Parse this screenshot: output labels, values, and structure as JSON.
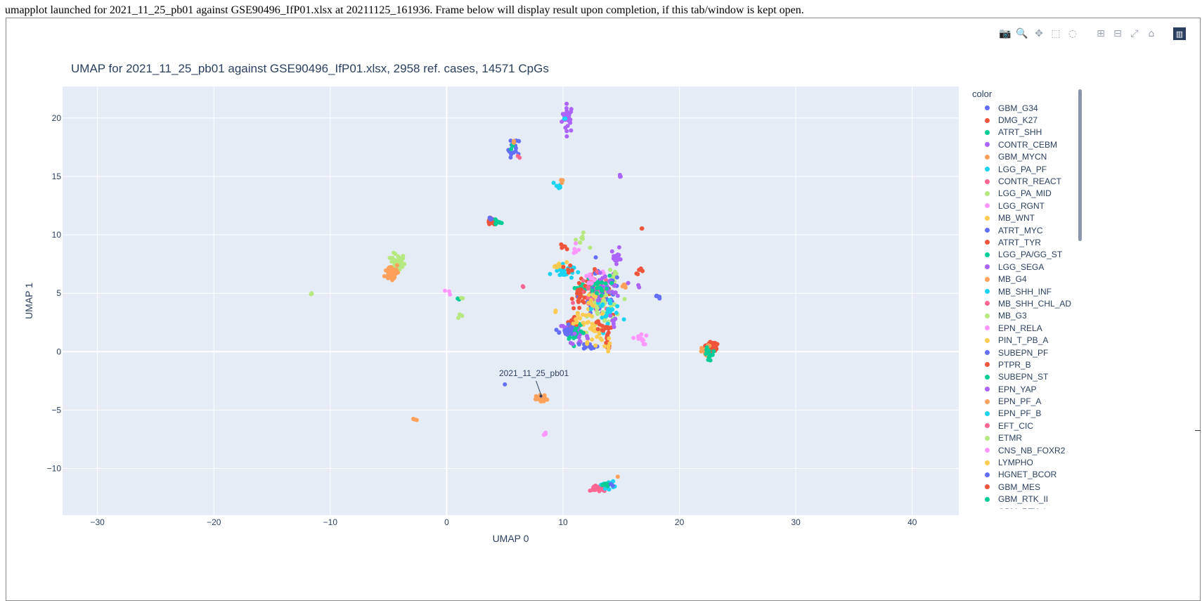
{
  "banner": "umapplot launched for 2021_11_25_pb01 against GSE90496_IfP01.xlsx at 20211125_161936. Frame below will display result upon completion, if this tab/window is kept open.",
  "modebar": {
    "buttons": [
      {
        "name": "camera-icon",
        "glyph": "📷"
      },
      {
        "name": "zoom-icon",
        "glyph": "🔍"
      },
      {
        "name": "pan-icon",
        "glyph": "✥"
      },
      {
        "name": "box-select-icon",
        "glyph": "⬚"
      },
      {
        "name": "lasso-select-icon",
        "glyph": "◌"
      },
      {
        "name": "zoom-in-icon",
        "glyph": "⊞"
      },
      {
        "name": "zoom-out-icon",
        "glyph": "⊟"
      },
      {
        "name": "autoscale-icon",
        "glyph": "⤢"
      },
      {
        "name": "home-icon",
        "glyph": "⌂"
      }
    ],
    "logo": "▥"
  },
  "chart_data": {
    "type": "scatter",
    "title": "UMAP for 2021_11_25_pb01 against GSE90496_IfP01.xlsx, 2958 ref. cases, 14571 CpGs",
    "xlabel": "UMAP 0",
    "ylabel": "UMAP 1",
    "xlim": [
      -33,
      44
    ],
    "ylim": [
      -14,
      22.7
    ],
    "xticks": [
      -30,
      -20,
      -10,
      0,
      10,
      20,
      30,
      40
    ],
    "yticks": [
      -10,
      -5,
      0,
      5,
      10,
      15,
      20
    ],
    "grid": true,
    "plot_bgcolor": "#e5ecf6",
    "legend_title": "color",
    "legend_position": "right",
    "series": [
      {
        "name": "GBM_G34",
        "color": "#636efa"
      },
      {
        "name": "DMG_K27",
        "color": "#EF553B"
      },
      {
        "name": "ATRT_SHH",
        "color": "#00cc96"
      },
      {
        "name": "CONTR_CEBM",
        "color": "#ab63fa"
      },
      {
        "name": "GBM_MYCN",
        "color": "#FFA15A"
      },
      {
        "name": "LGG_PA_PF",
        "color": "#19d3f3"
      },
      {
        "name": "CONTR_REACT",
        "color": "#FF6692"
      },
      {
        "name": "LGG_PA_MID",
        "color": "#B6E880"
      },
      {
        "name": "LGG_RGNT",
        "color": "#FF97FF"
      },
      {
        "name": "MB_WNT",
        "color": "#FECB52"
      },
      {
        "name": "ATRT_MYC",
        "color": "#636efa"
      },
      {
        "name": "ATRT_TYR",
        "color": "#EF553B"
      },
      {
        "name": "LGG_PA/GG_ST",
        "color": "#00cc96"
      },
      {
        "name": "LGG_SEGA",
        "color": "#ab63fa"
      },
      {
        "name": "MB_G4",
        "color": "#FFA15A"
      },
      {
        "name": "MB_SHH_INF",
        "color": "#19d3f3"
      },
      {
        "name": "MB_SHH_CHL_AD",
        "color": "#FF6692"
      },
      {
        "name": "MB_G3",
        "color": "#B6E880"
      },
      {
        "name": "EPN_RELA",
        "color": "#FF97FF"
      },
      {
        "name": "PIN_T_PB_A",
        "color": "#FECB52"
      },
      {
        "name": "SUBEPN_PF",
        "color": "#636efa"
      },
      {
        "name": "PTPR_B",
        "color": "#EF553B"
      },
      {
        "name": "SUBEPN_ST",
        "color": "#00cc96"
      },
      {
        "name": "EPN_YAP",
        "color": "#ab63fa"
      },
      {
        "name": "EPN_PF_A",
        "color": "#FFA15A"
      },
      {
        "name": "EPN_PF_B",
        "color": "#19d3f3"
      },
      {
        "name": "EFT_CIC",
        "color": "#FF6692"
      },
      {
        "name": "ETMR",
        "color": "#B6E880"
      },
      {
        "name": "CNS_NB_FOXR2",
        "color": "#FF97FF"
      },
      {
        "name": "LYMPHO",
        "color": "#FECB52"
      },
      {
        "name": "HGNET_BCOR",
        "color": "#636efa"
      },
      {
        "name": "GBM_MES",
        "color": "#EF553B"
      },
      {
        "name": "GBM_RTK_II",
        "color": "#00cc96"
      },
      {
        "name": "GBM_RTK_I",
        "color": "#ab63fa"
      }
    ],
    "clusters": [
      {
        "color": "#ab63fa",
        "x": 10.4,
        "y": 20.0,
        "sx": 0.25,
        "sy": 0.6,
        "n": 26
      },
      {
        "color": "#19d3f3",
        "x": 10.1,
        "y": 19.9,
        "sx": 0.1,
        "sy": 0.1,
        "n": 2
      },
      {
        "color": "#636efa",
        "x": 5.8,
        "y": 17.3,
        "sx": 0.25,
        "sy": 0.5,
        "n": 16
      },
      {
        "color": "#00cc96",
        "x": 5.7,
        "y": 17.5,
        "sx": 0.1,
        "sy": 0.2,
        "n": 4
      },
      {
        "color": "#FF6692",
        "x": 6.2,
        "y": 16.8,
        "sx": 0.1,
        "sy": 0.1,
        "n": 2
      },
      {
        "color": "#FFA15A",
        "x": 5.8,
        "y": 18.0,
        "sx": 0.05,
        "sy": 0.1,
        "n": 2
      },
      {
        "color": "#19d3f3",
        "x": 9.6,
        "y": 14.2,
        "sx": 0.2,
        "sy": 0.2,
        "n": 6
      },
      {
        "color": "#FFA15A",
        "x": 9.9,
        "y": 14.6,
        "sx": 0.1,
        "sy": 0.1,
        "n": 3
      },
      {
        "color": "#ab63fa",
        "x": 14.8,
        "y": 15.0,
        "sx": 0.1,
        "sy": 0.1,
        "n": 3
      },
      {
        "color": "#EF553B",
        "x": 3.9,
        "y": 11.1,
        "sx": 0.25,
        "sy": 0.15,
        "n": 14
      },
      {
        "color": "#00cc96",
        "x": 4.3,
        "y": 11.1,
        "sx": 0.2,
        "sy": 0.15,
        "n": 8
      },
      {
        "color": "#636efa",
        "x": 3.7,
        "y": 11.3,
        "sx": 0.1,
        "sy": 0.1,
        "n": 4
      },
      {
        "color": "#EF553B",
        "x": 16.8,
        "y": 10.5,
        "sx": 0.05,
        "sy": 0.05,
        "n": 2
      },
      {
        "color": "#B6E880",
        "x": -4.2,
        "y": 7.6,
        "sx": 0.3,
        "sy": 0.4,
        "n": 40
      },
      {
        "color": "#FFA15A",
        "x": -4.7,
        "y": 6.8,
        "sx": 0.3,
        "sy": 0.4,
        "n": 40
      },
      {
        "color": "#B6E880",
        "x": -11.6,
        "y": 4.9,
        "sx": 0.1,
        "sy": 0.1,
        "n": 3
      },
      {
        "color": "#FF97FF",
        "x": 0.2,
        "y": 5.1,
        "sx": 0.1,
        "sy": 0.1,
        "n": 3
      },
      {
        "color": "#00cc96",
        "x": 1.0,
        "y": 4.5,
        "sx": 0.1,
        "sy": 0.1,
        "n": 3
      },
      {
        "color": "#B6E880",
        "x": 1.4,
        "y": 4.7,
        "sx": 0.1,
        "sy": 0.1,
        "n": 2
      },
      {
        "color": "#B6E880",
        "x": 1.1,
        "y": 3.1,
        "sx": 0.1,
        "sy": 0.1,
        "n": 3
      },
      {
        "color": "#FF6692",
        "x": 6.5,
        "y": 5.6,
        "sx": 0.05,
        "sy": 0.05,
        "n": 2
      },
      {
        "color": "#FECB52",
        "x": 9.4,
        "y": 3.5,
        "sx": 0.05,
        "sy": 0.05,
        "n": 2
      },
      {
        "color": "#B6E880",
        "x": 11.5,
        "y": 9.5,
        "sx": 0.3,
        "sy": 0.3,
        "n": 8
      },
      {
        "color": "#FF97FF",
        "x": 11.1,
        "y": 8.6,
        "sx": 0.2,
        "sy": 0.3,
        "n": 6
      },
      {
        "color": "#EF553B",
        "x": 10.2,
        "y": 9.0,
        "sx": 0.2,
        "sy": 0.15,
        "n": 5
      },
      {
        "color": "#19d3f3",
        "x": 9.9,
        "y": 6.9,
        "sx": 0.5,
        "sy": 0.35,
        "n": 25
      },
      {
        "color": "#FECB52",
        "x": 9.7,
        "y": 7.4,
        "sx": 0.3,
        "sy": 0.15,
        "n": 8
      },
      {
        "color": "#EF553B",
        "x": 10.6,
        "y": 7.2,
        "sx": 0.2,
        "sy": 0.2,
        "n": 5
      },
      {
        "color": "#00cc96",
        "x": 11.8,
        "y": 5.5,
        "sx": 0.4,
        "sy": 0.15,
        "n": 14
      },
      {
        "color": "#ab63fa",
        "x": 14.6,
        "y": 8.0,
        "sx": 0.25,
        "sy": 0.4,
        "n": 14
      },
      {
        "color": "#B6E880",
        "x": 14.4,
        "y": 6.5,
        "sx": 0.2,
        "sy": 0.4,
        "n": 8
      },
      {
        "color": "#FF97FF",
        "x": 13.5,
        "y": 6.9,
        "sx": 0.1,
        "sy": 0.1,
        "n": 2
      },
      {
        "color": "#EF553B",
        "x": 16.5,
        "y": 6.9,
        "sx": 0.2,
        "sy": 0.1,
        "n": 6
      },
      {
        "color": "#FFA15A",
        "x": 15.4,
        "y": 5.6,
        "sx": 0.2,
        "sy": 0.1,
        "n": 4
      },
      {
        "color": "#ab63fa",
        "x": 16.5,
        "y": 5.6,
        "sx": 0.05,
        "sy": 0.05,
        "n": 2
      },
      {
        "color": "#636efa",
        "x": 18.1,
        "y": 4.7,
        "sx": 0.2,
        "sy": 0.1,
        "n": 5
      },
      {
        "color": "#EF553B",
        "x": 12.5,
        "y": 5.2,
        "sx": 0.8,
        "sy": 0.8,
        "n": 45
      },
      {
        "color": "#636efa",
        "x": 13.2,
        "y": 4.8,
        "sx": 0.9,
        "sy": 1.0,
        "n": 55
      },
      {
        "color": "#FF6692",
        "x": 12.7,
        "y": 4.9,
        "sx": 0.7,
        "sy": 0.8,
        "n": 35
      },
      {
        "color": "#B6E880",
        "x": 13.6,
        "y": 3.9,
        "sx": 0.7,
        "sy": 0.9,
        "n": 40
      },
      {
        "color": "#FECB52",
        "x": 12.6,
        "y": 3.5,
        "sx": 0.6,
        "sy": 0.9,
        "n": 30
      },
      {
        "color": "#19d3f3",
        "x": 13.8,
        "y": 3.6,
        "sx": 0.6,
        "sy": 0.5,
        "n": 25
      },
      {
        "color": "#ab63fa",
        "x": 13.7,
        "y": 5.4,
        "sx": 0.6,
        "sy": 0.6,
        "n": 25
      },
      {
        "color": "#00cc96",
        "x": 13.0,
        "y": 5.7,
        "sx": 0.5,
        "sy": 0.4,
        "n": 18
      },
      {
        "color": "#FF97FF",
        "x": 12.3,
        "y": 6.2,
        "sx": 0.3,
        "sy": 0.3,
        "n": 8
      },
      {
        "color": "#EF553B",
        "x": 11.4,
        "y": 4.5,
        "sx": 0.3,
        "sy": 0.5,
        "n": 12
      },
      {
        "color": "#ab63fa",
        "x": 10.6,
        "y": 1.8,
        "sx": 0.45,
        "sy": 0.35,
        "n": 40
      },
      {
        "color": "#00cc96",
        "x": 11.0,
        "y": 1.9,
        "sx": 0.35,
        "sy": 0.5,
        "n": 30
      },
      {
        "color": "#EF553B",
        "x": 11.0,
        "y": 2.5,
        "sx": 0.3,
        "sy": 0.25,
        "n": 14
      },
      {
        "color": "#636efa",
        "x": 10.3,
        "y": 1.8,
        "sx": 0.3,
        "sy": 0.3,
        "n": 18
      },
      {
        "color": "#FECB52",
        "x": 11.4,
        "y": 2.9,
        "sx": 0.3,
        "sy": 0.3,
        "n": 8
      },
      {
        "color": "#ab63fa",
        "x": 11.4,
        "y": 1.1,
        "sx": 0.3,
        "sy": 0.3,
        "n": 10
      },
      {
        "color": "#636efa",
        "x": 12.3,
        "y": 0.5,
        "sx": 0.35,
        "sy": 0.12,
        "n": 14
      },
      {
        "color": "#FECB52",
        "x": 12.6,
        "y": 1.2,
        "sx": 0.5,
        "sy": 0.6,
        "n": 14
      },
      {
        "color": "#EF553B",
        "x": 13.8,
        "y": 0.8,
        "sx": 0.15,
        "sy": 0.5,
        "n": 16
      },
      {
        "color": "#FECB52",
        "x": 13.7,
        "y": 0.6,
        "sx": 0.15,
        "sy": 0.3,
        "n": 6
      },
      {
        "color": "#EF553B",
        "x": 13.3,
        "y": 1.9,
        "sx": 0.35,
        "sy": 0.4,
        "n": 12
      },
      {
        "color": "#FF97FF",
        "x": 16.6,
        "y": 1.1,
        "sx": 0.3,
        "sy": 0.25,
        "n": 12
      },
      {
        "color": "#ab63fa",
        "x": 14.4,
        "y": 2.5,
        "sx": 0.2,
        "sy": 0.3,
        "n": 6
      },
      {
        "color": "#EF553B",
        "x": 22.7,
        "y": 0.4,
        "sx": 0.25,
        "sy": 0.25,
        "n": 40
      },
      {
        "color": "#FFA15A",
        "x": 22.3,
        "y": -0.1,
        "sx": 0.2,
        "sy": 0.3,
        "n": 20
      },
      {
        "color": "#00cc96",
        "x": 22.6,
        "y": -0.2,
        "sx": 0.25,
        "sy": 0.35,
        "n": 12
      },
      {
        "color": "#636efa",
        "x": 5.0,
        "y": -2.8,
        "sx": 0.02,
        "sy": 0.02,
        "n": 1
      },
      {
        "color": "#FFA15A",
        "x": 8.2,
        "y": -4.1,
        "sx": 0.25,
        "sy": 0.2,
        "n": 18
      },
      {
        "color": "#FFA15A",
        "x": -2.8,
        "y": -5.8,
        "sx": 0.1,
        "sy": 0.05,
        "n": 3
      },
      {
        "color": "#FF97FF",
        "x": 8.4,
        "y": -7.1,
        "sx": 0.1,
        "sy": 0.1,
        "n": 4
      },
      {
        "color": "#FF6692",
        "x": 13.1,
        "y": -11.7,
        "sx": 0.35,
        "sy": 0.15,
        "n": 30
      },
      {
        "color": "#19d3f3",
        "x": 13.8,
        "y": -11.4,
        "sx": 0.3,
        "sy": 0.15,
        "n": 14
      },
      {
        "color": "#00cc96",
        "x": 13.6,
        "y": -11.4,
        "sx": 0.2,
        "sy": 0.1,
        "n": 6
      },
      {
        "color": "#636efa",
        "x": 14.3,
        "y": -11.4,
        "sx": 0.1,
        "sy": 0.05,
        "n": 2
      },
      {
        "color": "#FFA15A",
        "x": 14.7,
        "y": -10.7,
        "sx": 0.05,
        "sy": 0.05,
        "n": 1
      }
    ],
    "annotation": {
      "text": "2021_11_25_pb01",
      "x": 8.1,
      "y": -3.8,
      "label_x": 7.5,
      "label_y": -2.2
    }
  }
}
